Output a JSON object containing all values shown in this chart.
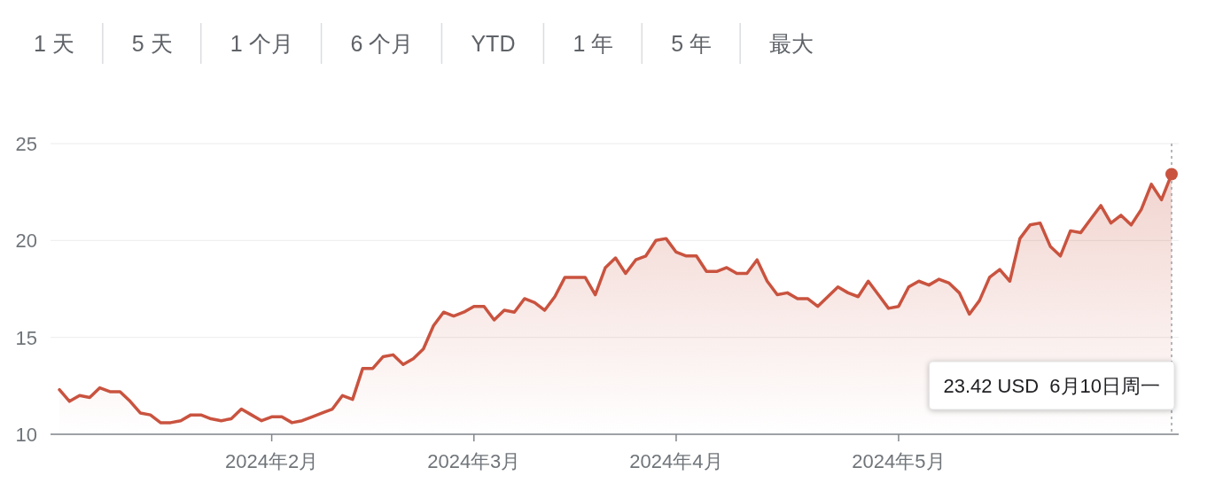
{
  "chart_data": {
    "type": "area",
    "categories": [
      null,
      null,
      null,
      null,
      null,
      null,
      null,
      null,
      null,
      null,
      null,
      null,
      null,
      null,
      null,
      null,
      null,
      null,
      null,
      null,
      null,
      "2024年2月",
      null,
      null,
      null,
      null,
      null,
      null,
      null,
      null,
      null,
      null,
      null,
      null,
      null,
      null,
      null,
      null,
      null,
      null,
      null,
      "2024年3月",
      null,
      null,
      null,
      null,
      null,
      null,
      null,
      null,
      null,
      null,
      null,
      null,
      null,
      null,
      null,
      null,
      null,
      null,
      null,
      "2024年4月",
      null,
      null,
      null,
      null,
      null,
      null,
      null,
      null,
      null,
      null,
      null,
      null,
      null,
      null,
      null,
      null,
      null,
      null,
      null,
      null,
      null,
      "2024年5月",
      null,
      null,
      null,
      null,
      null,
      null,
      null,
      null,
      null,
      null,
      null,
      null,
      null,
      null,
      null,
      null,
      null,
      null,
      null,
      null,
      null,
      null,
      null,
      null,
      null,
      null,
      null
    ],
    "series": [
      {
        "color": "#c9533f",
        "values": [
          12.3,
          11.7,
          12.0,
          11.9,
          12.4,
          12.2,
          12.2,
          11.7,
          11.1,
          11.0,
          10.6,
          10.6,
          10.7,
          11.0,
          11.0,
          10.8,
          10.7,
          10.8,
          11.3,
          11.0,
          10.7,
          10.9,
          10.9,
          10.6,
          10.7,
          10.9,
          11.1,
          11.3,
          12.0,
          11.8,
          13.4,
          13.4,
          14.0,
          14.1,
          13.6,
          13.9,
          14.4,
          15.6,
          16.3,
          16.1,
          16.3,
          16.6,
          16.6,
          15.9,
          16.4,
          16.3,
          17.0,
          16.8,
          16.4,
          17.1,
          18.1,
          18.1,
          18.1,
          17.2,
          18.6,
          19.1,
          18.3,
          19.0,
          19.2,
          20.0,
          20.1,
          19.4,
          19.2,
          19.2,
          18.4,
          18.4,
          18.6,
          18.3,
          18.3,
          19.0,
          17.9,
          17.2,
          17.3,
          17.0,
          17.0,
          16.6,
          17.1,
          17.6,
          17.3,
          17.1,
          17.9,
          17.2,
          16.5,
          16.6,
          17.6,
          17.9,
          17.7,
          18.0,
          17.8,
          17.3,
          16.2,
          16.9,
          18.1,
          18.5,
          17.9,
          20.1,
          20.8,
          20.9,
          19.7,
          19.2,
          20.5,
          20.4,
          21.1,
          21.8,
          20.9,
          21.3,
          20.8,
          21.6,
          22.9,
          22.1,
          23.42
        ]
      }
    ],
    "ylim": [
      10,
      25
    ],
    "yticks": [
      10,
      15,
      20,
      25
    ],
    "grid": "y",
    "annotations": [
      "1 天",
      "5 天",
      "1 个月",
      "6 个月",
      "YTD",
      "1 年",
      "5 年",
      "最大",
      "23.42 USD  6月10日周一"
    ]
  }
}
